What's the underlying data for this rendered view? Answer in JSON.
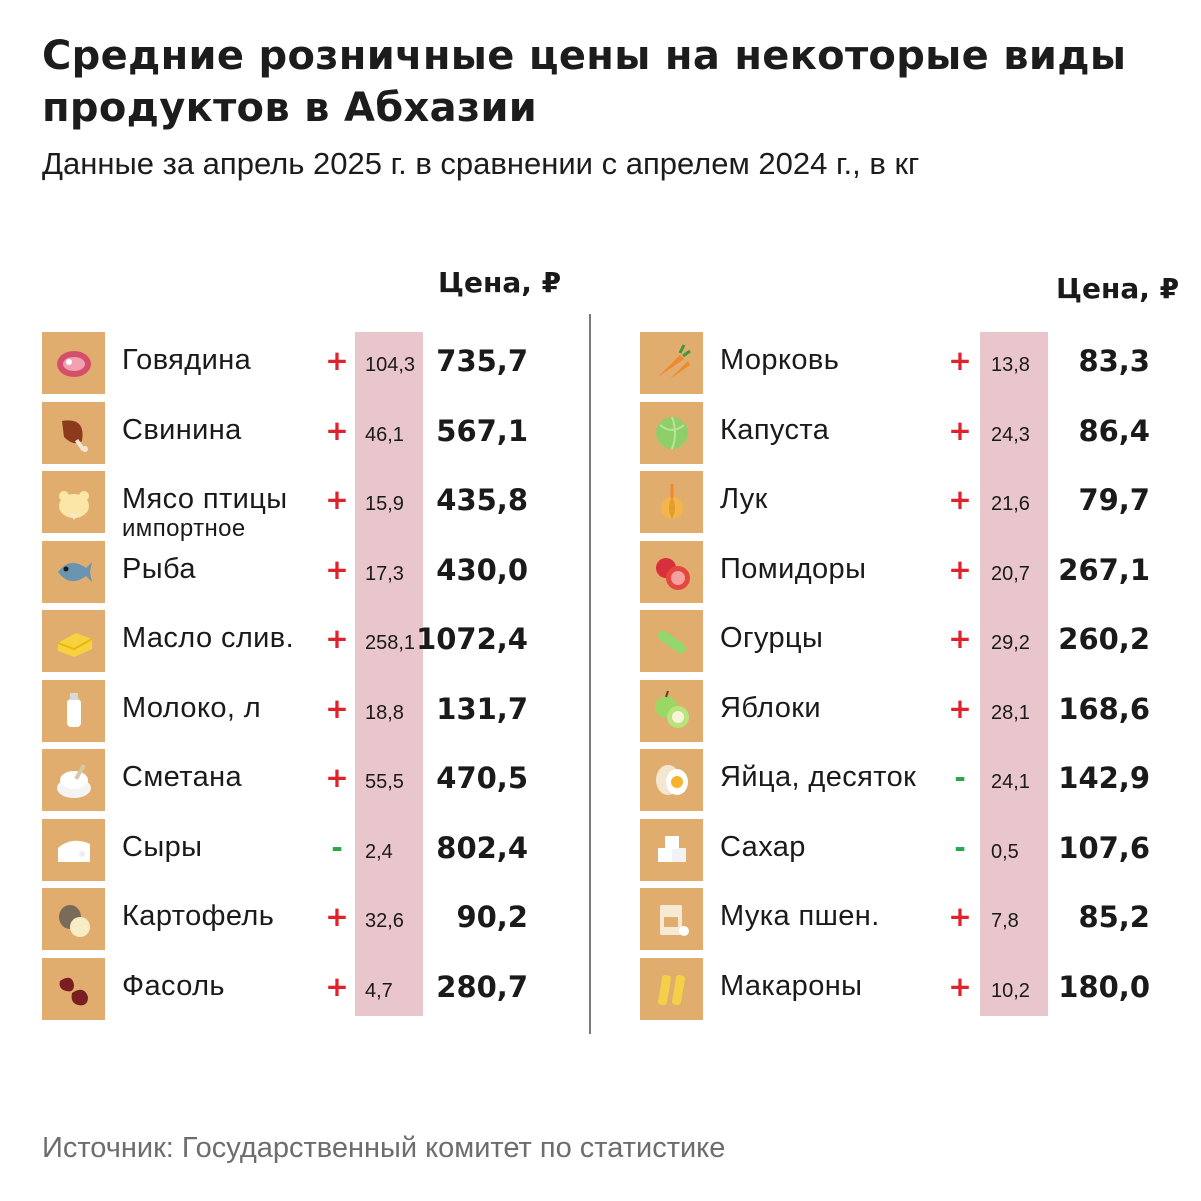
{
  "title": "Средние розничные цены на некоторые виды продуктов в Абхазии",
  "subtitle": "Данные за апрель 2025 г. в сравнении с апрелем 2024 г., в кг",
  "left": {
    "header": "Цена, ₽",
    "items": [
      {
        "icon": "meat-icon",
        "name": "Говядина",
        "sign": "+",
        "change": "104,3",
        "price": "735,7"
      },
      {
        "icon": "ham-icon",
        "name": "Свинина",
        "sign": "+",
        "change": "46,1",
        "price": "567,1"
      },
      {
        "icon": "chicken-icon",
        "name": "Мясо птицы",
        "sub": "импортное",
        "sign": "+",
        "change": "15,9",
        "price": "435,8"
      },
      {
        "icon": "fish-icon",
        "name": "Рыба",
        "sign": "+",
        "change": "17,3",
        "price": "430,0"
      },
      {
        "icon": "butter-icon",
        "name": "Масло слив.",
        "sign": "+",
        "change": "258,1",
        "price": "1072,4"
      },
      {
        "icon": "milk-icon",
        "name": "Молоко, л",
        "sign": "+",
        "change": "18,8",
        "price": "131,7"
      },
      {
        "icon": "sour-cream-icon",
        "name": "Сметана",
        "sign": "+",
        "change": "55,5",
        "price": "470,5"
      },
      {
        "icon": "cheese-icon",
        "name": "Сыры",
        "sign": "-",
        "change": "2,4",
        "price": "802,4"
      },
      {
        "icon": "potato-icon",
        "name": "Картофель",
        "sign": "+",
        "change": "32,6",
        "price": "90,2"
      },
      {
        "icon": "beans-icon",
        "name": "Фасоль",
        "sign": "+",
        "change": "4,7",
        "price": "280,7"
      }
    ]
  },
  "right": {
    "header": "Цена, ₽",
    "items": [
      {
        "icon": "carrot-icon",
        "name": "Морковь",
        "sign": "+",
        "change": "13,8",
        "price": "83,3"
      },
      {
        "icon": "cabbage-icon",
        "name": "Капуста",
        "sign": "+",
        "change": "24,3",
        "price": "86,4"
      },
      {
        "icon": "onion-icon",
        "name": "Лук",
        "sign": "+",
        "change": "21,6",
        "price": "79,7"
      },
      {
        "icon": "tomato-icon",
        "name": "Помидоры",
        "sign": "+",
        "change": "20,7",
        "price": "267,1"
      },
      {
        "icon": "cucumber-icon",
        "name": "Огурцы",
        "sign": "+",
        "change": "29,2",
        "price": "260,2"
      },
      {
        "icon": "apple-icon",
        "name": "Яблоки",
        "sign": "+",
        "change": "28,1",
        "price": "168,6"
      },
      {
        "icon": "egg-icon",
        "name": "Яйца, десяток",
        "sign": "-",
        "change": "24,1",
        "price": "142,9"
      },
      {
        "icon": "sugar-icon",
        "name": "Сахар",
        "sign": "-",
        "change": "0,5",
        "price": "107,6"
      },
      {
        "icon": "flour-icon",
        "name": "Мука пшен.",
        "sign": "+",
        "change": "7,8",
        "price": "85,2"
      },
      {
        "icon": "pasta-icon",
        "name": "Макароны",
        "sign": "+",
        "change": "10,2",
        "price": "180,0"
      }
    ]
  },
  "source": "Источник: Государственный комитет по статистике",
  "colors": {
    "tile": "#e1ad6f",
    "band": "#e8c6cb",
    "plus": "#e0222c",
    "minus": "#27a84a"
  }
}
